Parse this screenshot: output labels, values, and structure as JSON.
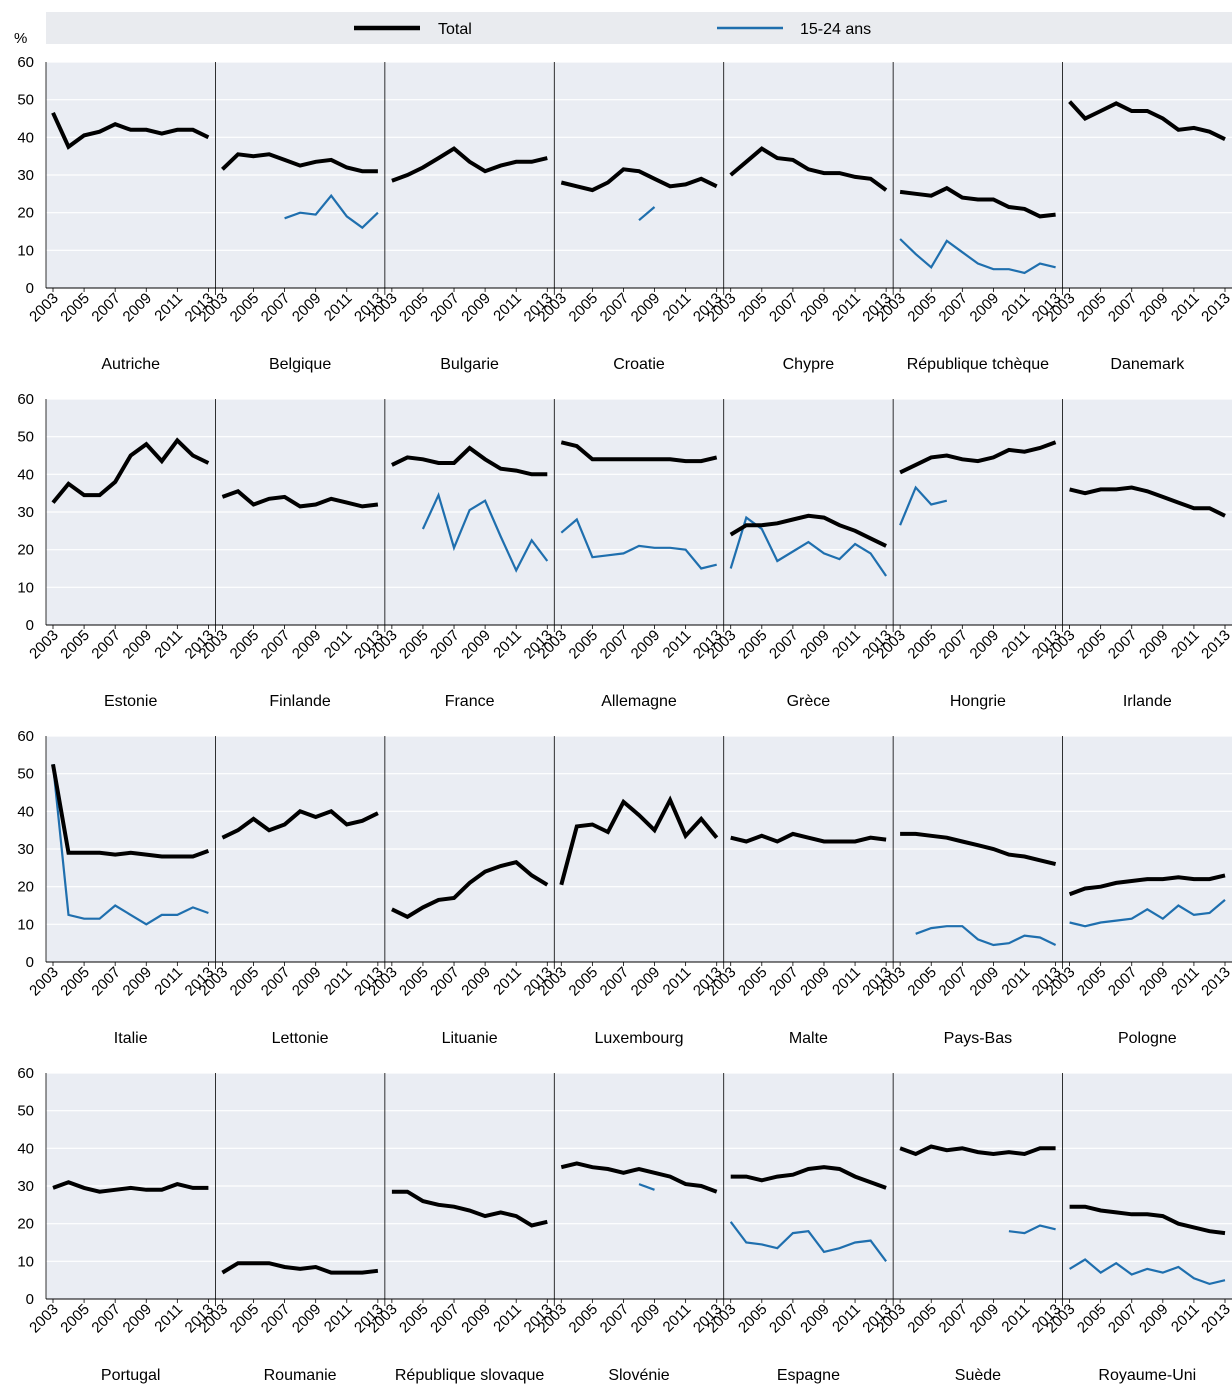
{
  "colors": {
    "total": "#000000",
    "youth": "#1f6fae",
    "panel_bg": "#eaedf3",
    "legend_bg": "#e9ebef"
  },
  "legend": {
    "total_label": "Total",
    "youth_label": "15-24 ans"
  },
  "y_unit": "%",
  "chart_data": {
    "type": "line",
    "ylim": [
      0,
      60
    ],
    "y_ticks": [
      0,
      10,
      20,
      30,
      40,
      50,
      60
    ],
    "x_tick_labels": [
      "2003",
      "2005",
      "2007",
      "2009",
      "2011",
      "2013"
    ],
    "x_years": [
      2003,
      2004,
      2005,
      2006,
      2007,
      2008,
      2009,
      2010,
      2011,
      2012,
      2013
    ],
    "series_names": [
      "Total",
      "15-24 ans"
    ],
    "countries": [
      {
        "name": "Autriche",
        "total": [
          46.5,
          37.5,
          40.5,
          41.5,
          43.5,
          42,
          42,
          41,
          42,
          42,
          40
        ],
        "youth": [
          null,
          null,
          null,
          null,
          null,
          null,
          null,
          null,
          null,
          null,
          null
        ]
      },
      {
        "name": "Belgique",
        "total": [
          31.5,
          35.5,
          35,
          35.5,
          34,
          32.5,
          33.5,
          34,
          32,
          31,
          31
        ],
        "youth": [
          null,
          null,
          null,
          null,
          18.5,
          20,
          19.5,
          24.5,
          19,
          16,
          20
        ]
      },
      {
        "name": "Bulgarie",
        "total": [
          28.5,
          30,
          32,
          34.5,
          37,
          33.5,
          31,
          32.5,
          33.5,
          33.5,
          34.5
        ],
        "youth": [
          null,
          null,
          null,
          null,
          null,
          null,
          null,
          null,
          null,
          null,
          null
        ]
      },
      {
        "name": "Croatie",
        "total": [
          28,
          27,
          26,
          28,
          31.5,
          31,
          29,
          27,
          27.5,
          29,
          27
        ],
        "youth": [
          null,
          null,
          null,
          null,
          null,
          18,
          21.5,
          null,
          null,
          null,
          null
        ]
      },
      {
        "name": "Chypre",
        "total": [
          30,
          33.5,
          37,
          34.5,
          34,
          31.5,
          30.5,
          30.5,
          29.5,
          29,
          26
        ],
        "youth": [
          null,
          null,
          null,
          null,
          null,
          null,
          null,
          null,
          null,
          null,
          null
        ]
      },
      {
        "name": "République tchèque",
        "total": [
          25.5,
          25,
          24.5,
          26.5,
          24,
          23.5,
          23.5,
          21.5,
          21,
          19,
          19.5
        ],
        "youth": [
          13,
          9,
          5.5,
          12.5,
          9.5,
          6.5,
          5,
          5,
          4,
          6.5,
          5.5
        ]
      },
      {
        "name": "Danemark",
        "total": [
          49.5,
          45,
          47,
          49,
          47,
          47,
          45,
          42,
          42.5,
          41.5,
          39.5
        ],
        "youth": [
          null,
          null,
          null,
          null,
          null,
          null,
          null,
          null,
          null,
          null,
          null
        ]
      },
      {
        "name": "Estonie",
        "total": [
          32.5,
          37.5,
          34.5,
          34.5,
          38,
          45,
          48,
          43.5,
          49,
          45,
          43
        ],
        "youth": [
          null,
          null,
          null,
          null,
          null,
          null,
          null,
          null,
          null,
          null,
          null
        ]
      },
      {
        "name": "Finlande",
        "total": [
          34,
          35.5,
          32,
          33.5,
          34,
          31.5,
          32,
          33.5,
          32.5,
          31.5,
          32
        ],
        "youth": [
          null,
          null,
          null,
          null,
          null,
          null,
          null,
          null,
          null,
          null,
          null
        ]
      },
      {
        "name": "France",
        "total": [
          42.5,
          44.5,
          44,
          43,
          43,
          47,
          44,
          41.5,
          41,
          40,
          40
        ],
        "youth": [
          null,
          null,
          25.5,
          34.5,
          20.5,
          30.5,
          33,
          23.5,
          14.5,
          22.5,
          17
        ]
      },
      {
        "name": "Allemagne",
        "total": [
          48.5,
          47.5,
          44,
          44,
          44,
          44,
          44,
          44,
          43.5,
          43.5,
          44.5
        ],
        "youth": [
          24.5,
          28,
          18,
          18.5,
          19,
          21,
          20.5,
          20.5,
          20,
          15,
          16
        ]
      },
      {
        "name": "Grèce",
        "total": [
          24,
          26.5,
          26.5,
          27,
          28,
          29,
          28.5,
          26.5,
          25,
          23,
          21
        ],
        "youth": [
          15,
          28.5,
          25.5,
          17,
          19.5,
          22,
          19,
          17.5,
          21.5,
          19,
          13
        ]
      },
      {
        "name": "Hongrie",
        "total": [
          40.5,
          42.5,
          44.5,
          45,
          44,
          43.5,
          44.5,
          46.5,
          46,
          47,
          48.5
        ],
        "youth": [
          26.5,
          36.5,
          32,
          33,
          null,
          null,
          null,
          null,
          null,
          null,
          null
        ]
      },
      {
        "name": "Irlande",
        "total": [
          36,
          35,
          36,
          36,
          36.5,
          35.5,
          34,
          32.5,
          31,
          31,
          29
        ],
        "youth": [
          null,
          null,
          null,
          null,
          null,
          null,
          null,
          null,
          null,
          null,
          null
        ]
      },
      {
        "name": "Italie",
        "total": [
          52.5,
          29,
          29,
          29,
          28.5,
          29,
          28.5,
          28,
          28,
          28,
          29.5
        ],
        "youth": [
          52.5,
          12.5,
          11.5,
          11.5,
          15,
          12.5,
          10,
          12.5,
          12.5,
          14.5,
          13
        ]
      },
      {
        "name": "Lettonie",
        "total": [
          33,
          35,
          38,
          35,
          36.5,
          40,
          38.5,
          40,
          36.5,
          37.5,
          39.5
        ],
        "youth": [
          null,
          null,
          null,
          null,
          null,
          null,
          null,
          null,
          null,
          null,
          null
        ]
      },
      {
        "name": "Lituanie",
        "total": [
          14,
          12,
          14.5,
          16.5,
          17,
          21,
          24,
          25.5,
          26.5,
          23,
          20.5
        ],
        "youth": [
          null,
          null,
          null,
          null,
          null,
          null,
          null,
          null,
          null,
          null,
          null
        ]
      },
      {
        "name": "Luxembourg",
        "total": [
          20.5,
          36,
          36.5,
          34.5,
          42.5,
          39,
          35,
          43,
          33.5,
          38,
          33
        ],
        "youth": [
          null,
          null,
          null,
          null,
          null,
          null,
          null,
          null,
          null,
          null,
          null
        ]
      },
      {
        "name": "Malte",
        "total": [
          33,
          32,
          33.5,
          32,
          34,
          33,
          32,
          32,
          32,
          33,
          32.5
        ],
        "youth": [
          null,
          null,
          null,
          null,
          null,
          null,
          null,
          null,
          null,
          null,
          null
        ]
      },
      {
        "name": "Pays-Bas",
        "total": [
          34,
          34,
          33.5,
          33,
          32,
          31,
          30,
          28.5,
          28,
          27,
          26
        ],
        "youth": [
          null,
          7.5,
          9,
          9.5,
          9.5,
          6,
          4.5,
          5,
          7,
          6.5,
          4.5
        ]
      },
      {
        "name": "Pologne",
        "total": [
          18,
          19.5,
          20,
          21,
          21.5,
          22,
          22,
          22.5,
          22,
          22,
          23
        ],
        "youth": [
          10.5,
          9.5,
          10.5,
          11,
          11.5,
          14,
          11.5,
          15,
          12.5,
          13,
          16.5
        ]
      },
      {
        "name": "Portugal",
        "total": [
          29.5,
          31,
          29.5,
          28.5,
          29,
          29.5,
          29,
          29,
          30.5,
          29.5,
          29.5
        ],
        "youth": [
          null,
          null,
          null,
          null,
          null,
          null,
          null,
          null,
          null,
          null,
          null
        ]
      },
      {
        "name": "Roumanie",
        "total": [
          7,
          9.5,
          9.5,
          9.5,
          8.5,
          8,
          8.5,
          7,
          7,
          7,
          7.5
        ],
        "youth": [
          null,
          null,
          null,
          null,
          null,
          null,
          null,
          null,
          null,
          null,
          null
        ]
      },
      {
        "name": "République slovaque",
        "total": [
          28.5,
          28.5,
          26,
          25,
          24.5,
          23.5,
          22,
          23,
          22,
          19.5,
          20.5
        ],
        "youth": [
          null,
          null,
          null,
          null,
          null,
          null,
          null,
          null,
          null,
          null,
          null
        ]
      },
      {
        "name": "Slovénie",
        "total": [
          35,
          36,
          35,
          34.5,
          33.5,
          34.5,
          33.5,
          32.5,
          30.5,
          30,
          28.5
        ],
        "youth": [
          null,
          null,
          null,
          null,
          null,
          30.5,
          29,
          null,
          null,
          null,
          null
        ]
      },
      {
        "name": "Espagne",
        "total": [
          32.5,
          32.5,
          31.5,
          32.5,
          33,
          34.5,
          35,
          34.5,
          32.5,
          31,
          29.5
        ],
        "youth": [
          20.5,
          15,
          14.5,
          13.5,
          17.5,
          18,
          12.5,
          13.5,
          15,
          15.5,
          10
        ]
      },
      {
        "name": "Suède",
        "total": [
          40,
          38.5,
          40.5,
          39.5,
          40,
          39,
          38.5,
          39,
          38.5,
          40,
          40
        ],
        "youth": [
          null,
          null,
          null,
          null,
          null,
          null,
          null,
          18,
          17.5,
          19.5,
          18.5
        ]
      },
      {
        "name": "Royaume-Uni",
        "total": [
          24.5,
          24.5,
          23.5,
          23,
          22.5,
          22.5,
          22,
          20,
          19,
          18,
          17.5
        ],
        "youth": [
          8,
          10.5,
          7,
          9.5,
          6.5,
          8,
          7,
          8.5,
          5.5,
          4,
          5
        ]
      }
    ]
  }
}
